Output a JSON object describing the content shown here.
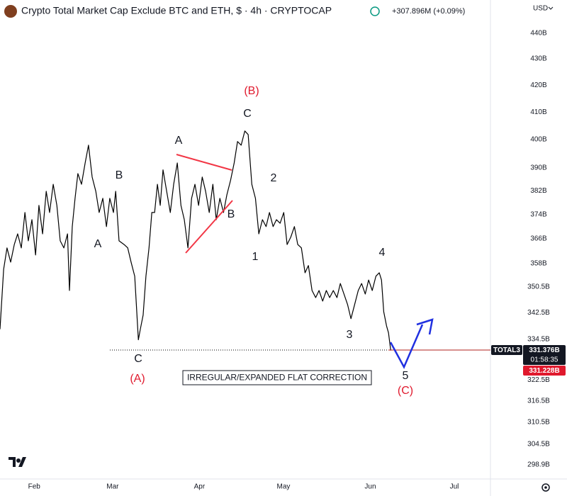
{
  "header": {
    "title": "Crypto Total Market Cap Exclude BTC and ETH, $ · 4h · CRYPTOCAP",
    "change": "+307.896M (+0.09%)",
    "currency": "USD"
  },
  "price_labels": {
    "symbol": "TOTAL3",
    "last": "331.376B",
    "countdown": "01:58:35",
    "line": "331.228B"
  },
  "annotations": [
    "(B)",
    "C",
    "A",
    "B",
    "A",
    "B",
    "2",
    "1",
    "4",
    "3",
    "C",
    "(A)",
    "5",
    "(C)",
    "IRREGULAR/EXPANDED FLAT CORRECTION"
  ],
  "chart_data": {
    "type": "line",
    "log": true,
    "color": "#000000",
    "x": [
      19.8,
      21.1,
      22.3,
      23.6,
      24.9,
      26.1,
      27.4,
      28.7,
      29.9,
      31.2,
      32.5,
      33.7,
      35.0,
      36.3,
      37.5,
      38.8,
      40.1,
      41.3,
      42.6,
      43.9,
      44.6,
      45.6,
      46.6,
      47.6,
      48.9,
      50.2,
      51.4,
      52.7,
      54.0,
      55.2,
      56.5,
      57.8,
      59.0,
      60.3,
      61.1,
      62.3,
      64.1,
      65.4,
      66.6,
      67.9,
      69.2,
      69.9,
      70.9,
      71.9,
      73.0,
      74.0,
      75.0,
      76.0,
      77.0,
      78.0,
      79.3,
      80.6,
      81.8,
      83.1,
      84.4,
      85.6,
      86.9,
      88.2,
      89.4,
      90.7,
      92.0,
      93.2,
      94.5,
      95.8,
      97.0,
      98.3,
      99.6,
      100.8,
      102.1,
      103.4,
      104.6,
      105.9,
      107.2,
      108.4,
      109.7,
      111.0,
      112.2,
      113.5,
      114.8,
      116.0,
      117.3,
      118.5,
      119.8,
      121.1,
      122.3,
      123.6,
      124.9,
      126.1,
      127.4,
      128.7,
      129.9,
      131.2,
      132.5,
      133.7,
      135.0,
      136.3,
      137.5,
      138.8,
      140.1,
      141.3,
      142.6,
      143.9,
      145.1,
      146.4,
      147.7,
      148.9,
      150.2,
      151.4,
      152.7,
      154.0,
      155.2,
      156.0,
      156.8,
      157.8,
      158.5,
      159.3
    ],
    "values": [
      337.5,
      356.1,
      363.0,
      358.4,
      364.1,
      367.6,
      363.0,
      374.7,
      365.3,
      372.3,
      360.7,
      377.1,
      367.6,
      381.9,
      374.7,
      384.3,
      377.1,
      365.3,
      363.0,
      367.6,
      349.4,
      370.0,
      379.5,
      388.0,
      384.3,
      391.7,
      398.0,
      386.8,
      381.9,
      374.7,
      379.5,
      370.0,
      379.5,
      374.7,
      381.9,
      365.3,
      364.1,
      363.0,
      358.4,
      353.9,
      334.3,
      337.5,
      341.8,
      353.9,
      363.0,
      374.7,
      374.7,
      384.3,
      377.1,
      389.3,
      381.9,
      374.7,
      384.3,
      391.7,
      377.1,
      372.3,
      363.0,
      379.5,
      384.3,
      377.1,
      386.8,
      381.9,
      374.7,
      384.3,
      372.3,
      379.5,
      374.7,
      380.7,
      385.6,
      391.7,
      399.3,
      398.0,
      403.1,
      401.8,
      384.3,
      379.5,
      367.6,
      372.3,
      370.0,
      374.7,
      370.0,
      372.3,
      371.1,
      374.7,
      364.1,
      366.5,
      370.0,
      364.1,
      363.0,
      355.0,
      357.3,
      349.4,
      347.2,
      349.4,
      346.1,
      349.4,
      347.2,
      349.4,
      347.2,
      351.6,
      348.3,
      345.0,
      340.7,
      345.0,
      349.4,
      351.6,
      348.3,
      352.7,
      349.4,
      353.9,
      355.0,
      352.7,
      342.8,
      338.5,
      336.4,
      331.1
    ],
    "xlim": [
      19.8,
      194.9
    ],
    "xticks": [
      {
        "value": 32,
        "label": "Feb"
      },
      {
        "value": 60,
        "label": "Mar"
      },
      {
        "value": 91,
        "label": "Apr"
      },
      {
        "value": 121,
        "label": "May"
      },
      {
        "value": 152,
        "label": "Jun"
      },
      {
        "value": 182,
        "label": "Jul"
      }
    ],
    "ylim": [
      295.1,
      453.3
    ],
    "yticks": [
      {
        "value": 440,
        "label": "440B"
      },
      {
        "value": 430,
        "label": "430B"
      },
      {
        "value": 420,
        "label": "420B"
      },
      {
        "value": 410,
        "label": "410B"
      },
      {
        "value": 400,
        "label": "400B"
      },
      {
        "value": 390,
        "label": "390B"
      },
      {
        "value": 382,
        "label": "382B"
      },
      {
        "value": 374,
        "label": "374B"
      },
      {
        "value": 366,
        "label": "366B"
      },
      {
        "value": 358,
        "label": "358B"
      },
      {
        "value": 350.5,
        "label": "350.5B"
      },
      {
        "value": 342.5,
        "label": "342.5B"
      },
      {
        "value": 334.5,
        "label": "334.5B"
      },
      {
        "value": 322.5,
        "label": "322.5B"
      },
      {
        "value": 316.5,
        "label": "316.5B"
      },
      {
        "value": 310.5,
        "label": "310.5B"
      },
      {
        "value": 304.5,
        "label": "304.5B"
      },
      {
        "value": 298.9,
        "label": "298.9B"
      }
    ]
  }
}
